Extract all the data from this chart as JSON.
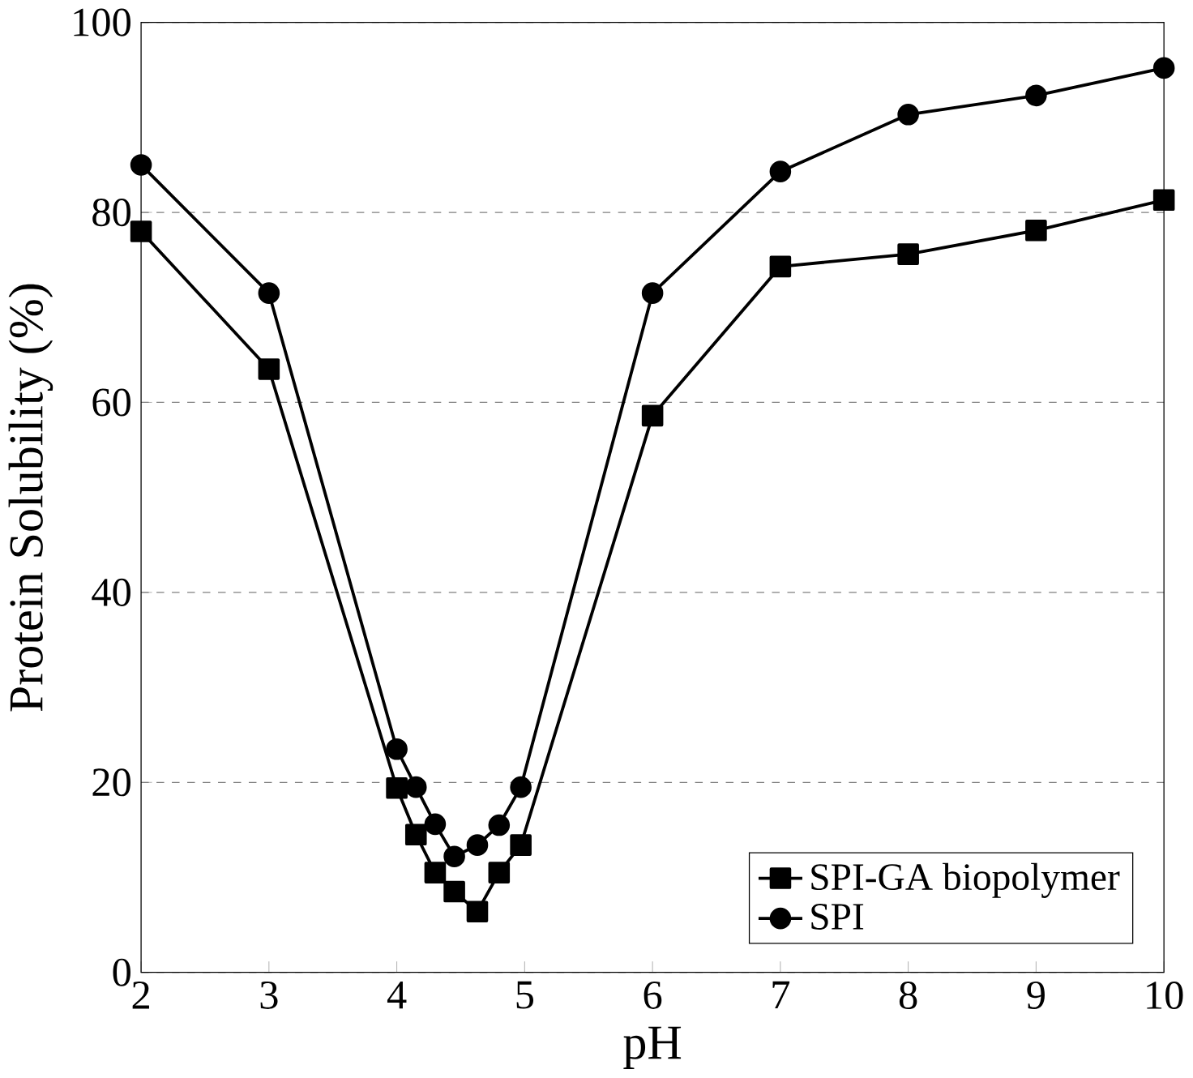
{
  "chart_data": {
    "type": "line",
    "xlabel": "pH",
    "ylabel": "Protein Solubility (%)",
    "xlim": [
      2,
      10
    ],
    "ylim": [
      0,
      100
    ],
    "xticks": [
      2,
      3,
      4,
      5,
      6,
      7,
      8,
      9,
      10
    ],
    "yticks": [
      0,
      20,
      40,
      60,
      80,
      100
    ],
    "grid": "y",
    "legend": "bottom right",
    "series": [
      {
        "name": "SPI-GA biopolymer",
        "color": "#000000",
        "marker": "square",
        "x": [
          2,
          3,
          4.0,
          4.15,
          4.3,
          4.45,
          4.63,
          4.8,
          4.97,
          6,
          7,
          8,
          9,
          10
        ],
        "values": [
          78,
          63.5,
          19.4,
          14.5,
          10.5,
          8.5,
          6.4,
          10.5,
          13.4,
          58.6,
          74.3,
          75.6,
          78.1,
          81.3
        ]
      },
      {
        "name": "SPI",
        "color": "#000000",
        "marker": "circle",
        "x": [
          2,
          3,
          4.0,
          4.15,
          4.3,
          4.45,
          4.63,
          4.8,
          4.97,
          6,
          7,
          8,
          9,
          10
        ],
        "values": [
          85,
          71.5,
          23.5,
          19.5,
          15.6,
          12.2,
          13.4,
          15.5,
          19.5,
          71.5,
          84.3,
          90.3,
          92.3,
          95.2
        ]
      }
    ]
  }
}
